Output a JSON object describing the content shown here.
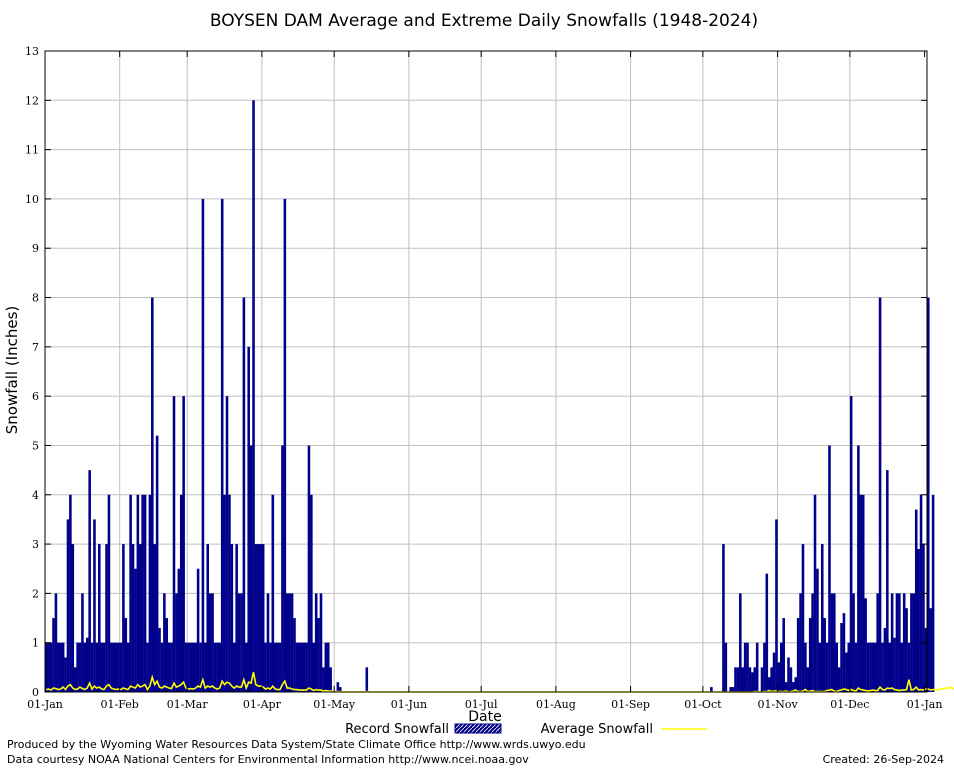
{
  "chart_data": {
    "type": "bar",
    "title": "BOYSEN DAM Average and Extreme Daily Snowfalls (1948-2024)",
    "xlabel": "Date",
    "ylabel": "Snowfall (Inches)",
    "ylim": [
      0,
      13
    ],
    "yticks": [
      "0",
      "1",
      "2",
      "3",
      "4",
      "5",
      "6",
      "7",
      "8",
      "9",
      "10",
      "11",
      "12",
      "13"
    ],
    "xticks": [
      "01-Jan",
      "01-Feb",
      "01-Mar",
      "01-Apr",
      "01-May",
      "01-Jun",
      "01-Jul",
      "01-Aug",
      "01-Sep",
      "01-Oct",
      "01-Nov",
      "01-Dec",
      "01-Jan"
    ],
    "xtick_days": [
      1,
      32,
      60,
      91,
      121,
      152,
      182,
      213,
      244,
      274,
      305,
      335,
      366
    ],
    "grid": true,
    "colors": {
      "record": "#00008b",
      "average": "#ffff00",
      "grid": "#c0c0c0"
    },
    "series": [
      {
        "name": "Record Snowfall",
        "type": "bar",
        "values": [
          1,
          1,
          1,
          1.5,
          2,
          1,
          1,
          1,
          0.7,
          3.5,
          4,
          3,
          0.5,
          1,
          1,
          2,
          1,
          1.1,
          4.5,
          1,
          3.5,
          1,
          3,
          1,
          1,
          3,
          4,
          1,
          1,
          1,
          1,
          1,
          3,
          1.5,
          1,
          4,
          3,
          2.5,
          4,
          3,
          4,
          4,
          1,
          4,
          8,
          3,
          5.2,
          1.3,
          1,
          2,
          1.5,
          1,
          1,
          6,
          2,
          2.5,
          4,
          6,
          1,
          1,
          1,
          1,
          1,
          2.5,
          1,
          10,
          1,
          3,
          2,
          2,
          1,
          1,
          1,
          10,
          4,
          6,
          4,
          3,
          1,
          3,
          2,
          2,
          8,
          1,
          7,
          5,
          12,
          3,
          3,
          3,
          3,
          1,
          2,
          1,
          4,
          1,
          1,
          1,
          5,
          10,
          2,
          2,
          2,
          1.5,
          1,
          1,
          1,
          1,
          1,
          5,
          4,
          1,
          2,
          1.5,
          2,
          0.5,
          1,
          1,
          0.5,
          0,
          0,
          0.2,
          0.1,
          0,
          0,
          0,
          0,
          0,
          0,
          0,
          0,
          0,
          0,
          0.5,
          0,
          0,
          0,
          0,
          0,
          0,
          0,
          0,
          0,
          0,
          0,
          0,
          0,
          0,
          0,
          0,
          0,
          0,
          0,
          0,
          0,
          0,
          0,
          0,
          0,
          0,
          0,
          0,
          0,
          0,
          0,
          0,
          0,
          0,
          0,
          0,
          0,
          0,
          0,
          0,
          0,
          0,
          0,
          0,
          0,
          0,
          0,
          0,
          0,
          0,
          0,
          0,
          0,
          0,
          0,
          0,
          0,
          0,
          0,
          0,
          0,
          0,
          0,
          0,
          0,
          0,
          0,
          0,
          0,
          0,
          0,
          0,
          0,
          0,
          0,
          0,
          0,
          0,
          0,
          0,
          0,
          0,
          0,
          0,
          0,
          0,
          0,
          0,
          0,
          0,
          0,
          0,
          0,
          0,
          0,
          0,
          0,
          0,
          0,
          0,
          0,
          0,
          0,
          0,
          0,
          0,
          0,
          0,
          0,
          0,
          0,
          0,
          0,
          0,
          0,
          0,
          0,
          0,
          0,
          0,
          0,
          0,
          0,
          0,
          0,
          0,
          0,
          0,
          0,
          0,
          0,
          0,
          0,
          0,
          0,
          0,
          0,
          0,
          0,
          0,
          0,
          0,
          0.1,
          0,
          0,
          0,
          0,
          3,
          1,
          0,
          0.1,
          0.1,
          0.5,
          0.5,
          2,
          0.5,
          1,
          1,
          0.5,
          0.4,
          0.5,
          1,
          0,
          0.5,
          1,
          2.4,
          0.3,
          0.5,
          0.8,
          3.5,
          0.6,
          1,
          1.5,
          0.2,
          0.7,
          0.5,
          0.2,
          0.3,
          1.5,
          2,
          3,
          1,
          0.5,
          1.5,
          2,
          4,
          2.5,
          1,
          3,
          1.5,
          1,
          5,
          2,
          2,
          1,
          0.5,
          1.4,
          1.6,
          0.8,
          1,
          6,
          2,
          1,
          5,
          4,
          4,
          1.9,
          1,
          1,
          1,
          1,
          2,
          8,
          1,
          1.3,
          4.5,
          1,
          2,
          1.1,
          2,
          2,
          1,
          2,
          1.7,
          1,
          2,
          2,
          3.7,
          2.9,
          4,
          3,
          1.3,
          8,
          1.7,
          4
        ],
        "note": "values per day-of-year 1..366"
      },
      {
        "name": "Average Snowfall",
        "type": "line",
        "values": [
          0.05,
          0.06,
          0.04,
          0.08,
          0.07,
          0.05,
          0.06,
          0.1,
          0.05,
          0.12,
          0.15,
          0.08,
          0.05,
          0.06,
          0.1,
          0.07,
          0.05,
          0.08,
          0.18,
          0.06,
          0.12,
          0.08,
          0.1,
          0.06,
          0.05,
          0.12,
          0.15,
          0.08,
          0.06,
          0.05,
          0.06,
          0.05,
          0.08,
          0.06,
          0.05,
          0.12,
          0.1,
          0.08,
          0.15,
          0.1,
          0.12,
          0.15,
          0.05,
          0.12,
          0.3,
          0.15,
          0.22,
          0.1,
          0.08,
          0.12,
          0.1,
          0.08,
          0.07,
          0.18,
          0.1,
          0.12,
          0.15,
          0.2,
          0.08,
          0.06,
          0.07,
          0.06,
          0.08,
          0.12,
          0.1,
          0.25,
          0.08,
          0.12,
          0.1,
          0.12,
          0.08,
          0.06,
          0.08,
          0.22,
          0.15,
          0.2,
          0.18,
          0.12,
          0.08,
          0.12,
          0.1,
          0.1,
          0.25,
          0.08,
          0.2,
          0.18,
          0.4,
          0.15,
          0.12,
          0.12,
          0.1,
          0.06,
          0.08,
          0.06,
          0.12,
          0.06,
          0.05,
          0.05,
          0.15,
          0.22,
          0.08,
          0.08,
          0.06,
          0.05,
          0.05,
          0.04,
          0.04,
          0.04,
          0.04,
          0.08,
          0.06,
          0.03,
          0.05,
          0.04,
          0.04,
          0.02,
          0.03,
          0.02,
          0.02,
          0,
          0,
          0.01,
          0.01,
          0,
          0,
          0,
          0,
          0,
          0,
          0,
          0,
          0,
          0,
          0.01,
          0,
          0,
          0,
          0,
          0,
          0,
          0,
          0,
          0,
          0,
          0,
          0,
          0,
          0,
          0,
          0,
          0,
          0,
          0,
          0,
          0,
          0,
          0,
          0,
          0,
          0,
          0,
          0,
          0,
          0,
          0,
          0,
          0,
          0,
          0,
          0,
          0,
          0,
          0,
          0,
          0,
          0,
          0,
          0,
          0,
          0,
          0,
          0,
          0,
          0,
          0,
          0,
          0,
          0,
          0,
          0,
          0,
          0,
          0,
          0,
          0,
          0,
          0,
          0,
          0,
          0,
          0,
          0,
          0,
          0,
          0,
          0,
          0,
          0,
          0,
          0,
          0,
          0,
          0,
          0,
          0,
          0,
          0,
          0,
          0,
          0,
          0,
          0,
          0,
          0,
          0,
          0,
          0,
          0,
          0,
          0,
          0,
          0,
          0,
          0,
          0,
          0,
          0,
          0,
          0,
          0,
          0,
          0,
          0,
          0,
          0,
          0,
          0,
          0,
          0,
          0,
          0,
          0,
          0,
          0,
          0,
          0,
          0,
          0,
          0,
          0,
          0,
          0,
          0,
          0,
          0,
          0,
          0,
          0,
          0,
          0,
          0,
          0,
          0,
          0,
          0,
          0,
          0,
          0,
          0,
          0,
          0,
          0,
          0,
          0,
          0,
          0,
          0,
          0,
          0,
          0,
          0,
          0,
          0,
          0,
          0.01,
          0.01,
          0,
          0,
          0.01,
          0.01,
          0.03,
          0.01,
          0.02,
          0.02,
          0.01,
          0.01,
          0.01,
          0.02,
          0,
          0.01,
          0.02,
          0.04,
          0.01,
          0.01,
          0.02,
          0.05,
          0.01,
          0.02,
          0.03,
          0.01,
          0.01,
          0.01,
          0.01,
          0.01,
          0.03,
          0.04,
          0.05,
          0.02,
          0.01,
          0.03,
          0.04,
          0.06,
          0.05,
          0.03,
          0.05,
          0.03,
          0.02,
          0.08,
          0.05,
          0.04,
          0.03,
          0.02,
          0.03,
          0.04,
          0.03,
          0.03,
          0.1,
          0.05,
          0.04,
          0.08,
          0.07,
          0.08,
          0.05,
          0.04,
          0.03,
          0.04,
          0.04,
          0.05,
          0.25,
          0.04,
          0.05,
          0.1,
          0.04,
          0.05,
          0.04,
          0.06,
          0.06,
          0.04,
          0.05,
          0.05,
          0.04,
          0.06,
          0.06,
          0.08,
          0.07,
          0.1,
          0.08,
          0.05,
          0.2,
          0.06,
          0.15
        ]
      }
    ],
    "legend": {
      "record_label": "Record Snowfall",
      "average_label": "Average Snowfall",
      "placement": "bottom"
    }
  },
  "footer": {
    "line1": "Produced by the Wyoming Water Resources Data System/State Climate Office http://www.wrds.uwyo.edu",
    "line2": "Data courtesy NOAA National Centers for Environmental Information http://www.ncei.noaa.gov",
    "created": "Created:  26-Sep-2024"
  }
}
